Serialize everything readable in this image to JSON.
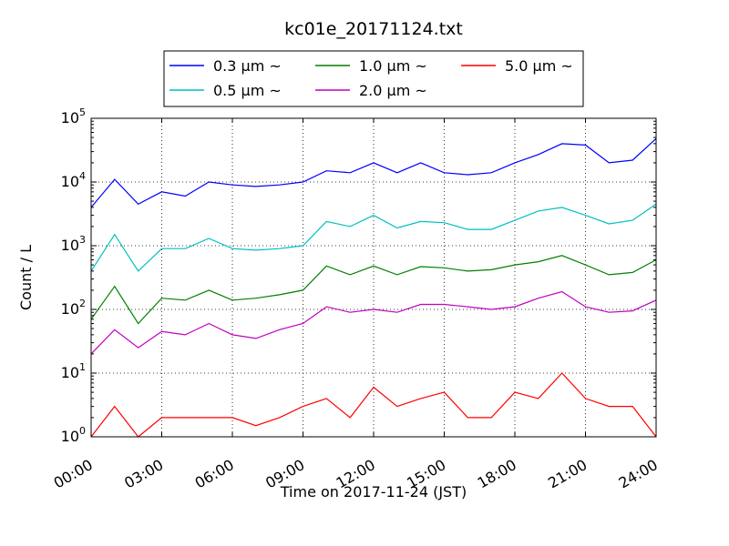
{
  "chart_data": {
    "type": "line",
    "title": "kc01e_20171124.txt",
    "xlabel": "Time on 2017-11-24 (JST)",
    "ylabel": "Count / L",
    "xlim": [
      "00:00",
      "24:00"
    ],
    "ylim": [
      1,
      100000
    ],
    "yscale": "log",
    "grid": true,
    "legend_position": "top-center",
    "x_ticks": [
      "00:00",
      "03:00",
      "06:00",
      "09:00",
      "12:00",
      "15:00",
      "18:00",
      "21:00",
      "24:00"
    ],
    "y_ticks": [
      {
        "base": "10",
        "exp": "0",
        "value": 1
      },
      {
        "base": "10",
        "exp": "1",
        "value": 10
      },
      {
        "base": "10",
        "exp": "2",
        "value": 100
      },
      {
        "base": "10",
        "exp": "3",
        "value": 1000
      },
      {
        "base": "10",
        "exp": "4",
        "value": 10000
      },
      {
        "base": "10",
        "exp": "5",
        "value": 100000
      }
    ],
    "x": [
      "00:00",
      "01:00",
      "02:00",
      "03:00",
      "04:00",
      "05:00",
      "06:00",
      "07:00",
      "08:00",
      "09:00",
      "10:00",
      "11:00",
      "12:00",
      "13:00",
      "14:00",
      "15:00",
      "16:00",
      "17:00",
      "18:00",
      "19:00",
      "20:00",
      "21:00",
      "22:00",
      "23:00",
      "24:00"
    ],
    "series": [
      {
        "name": "0.3 μm ~",
        "color": "#0000ff",
        "values": [
          4000,
          11000,
          4500,
          7000,
          6000,
          10000,
          9000,
          8500,
          9000,
          10000,
          15000,
          14000,
          20000,
          14000,
          20000,
          14000,
          13000,
          14000,
          20000,
          27000,
          40000,
          38000,
          20000,
          22000,
          48000
        ]
      },
      {
        "name": "0.5 μm ~",
        "color": "#00bfbf",
        "values": [
          400,
          1500,
          400,
          900,
          900,
          1300,
          900,
          850,
          900,
          1000,
          2400,
          2000,
          3000,
          1900,
          2400,
          2300,
          1800,
          1800,
          2500,
          3500,
          4000,
          3000,
          2200,
          2500,
          4500
        ]
      },
      {
        "name": "1.0 μm ~",
        "color": "#008000",
        "values": [
          70,
          230,
          60,
          150,
          140,
          200,
          140,
          150,
          170,
          200,
          480,
          350,
          480,
          350,
          470,
          450,
          400,
          420,
          500,
          560,
          700,
          500,
          350,
          380,
          600
        ]
      },
      {
        "name": "2.0 μm ~",
        "color": "#bf00bf",
        "values": [
          20,
          48,
          25,
          45,
          40,
          60,
          40,
          35,
          48,
          60,
          110,
          90,
          100,
          90,
          120,
          120,
          110,
          100,
          110,
          150,
          190,
          110,
          90,
          95,
          140
        ]
      },
      {
        "name": "5.0 μm ~",
        "color": "#ff0000",
        "values": [
          1,
          3,
          1,
          2,
          2,
          2,
          2,
          1.5,
          2,
          3,
          4,
          2,
          6,
          3,
          4,
          5,
          2,
          2,
          5,
          4,
          10,
          4,
          3,
          3,
          1
        ]
      }
    ]
  }
}
